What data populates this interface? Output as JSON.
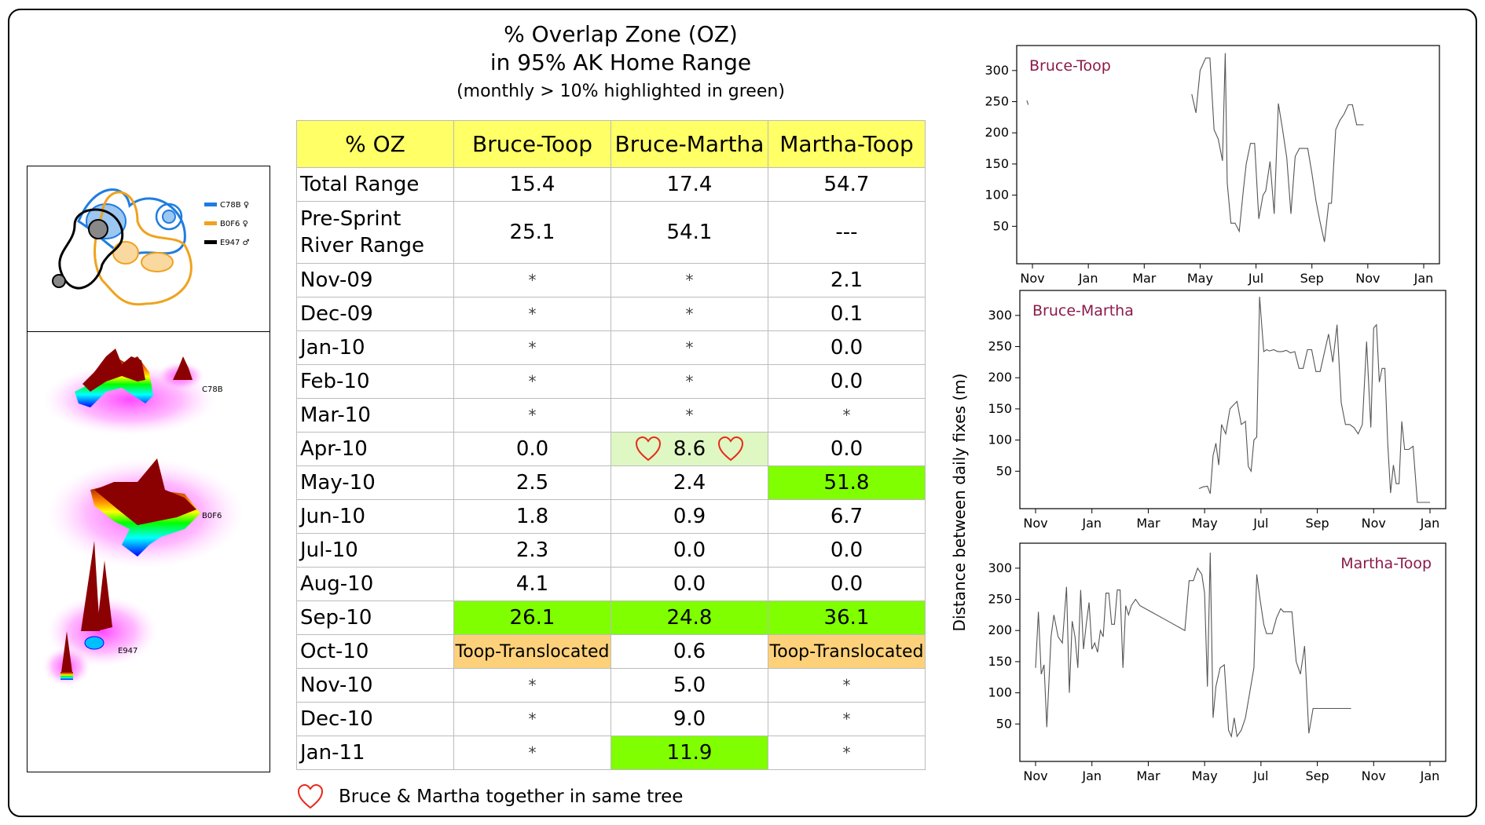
{
  "title": {
    "line1": "% Overlap Zone (OZ)",
    "line2": "in 95% AK Home Range",
    "subtitle": "(monthly > 10% highlighted in green)"
  },
  "table": {
    "headers": [
      "% OZ",
      "Bruce-Toop",
      "Bruce-Martha",
      "Martha-Toop"
    ],
    "rows": [
      {
        "label": "Total Range",
        "values": [
          "15.4",
          "17.4",
          "54.7"
        ],
        "hl": [
          "",
          "",
          ""
        ]
      },
      {
        "label": "Pre-Sprint River Range",
        "values": [
          "25.1",
          "54.1",
          "---"
        ],
        "hl": [
          "",
          "",
          ""
        ]
      },
      {
        "label": "Nov-09",
        "values": [
          "*",
          "*",
          "2.1"
        ],
        "hl": [
          "",
          "",
          ""
        ]
      },
      {
        "label": "Dec-09",
        "values": [
          "*",
          "*",
          "0.1"
        ],
        "hl": [
          "",
          "",
          ""
        ]
      },
      {
        "label": "Jan-10",
        "values": [
          "*",
          "*",
          "0.0"
        ],
        "hl": [
          "",
          "",
          ""
        ]
      },
      {
        "label": "Feb-10",
        "values": [
          "*",
          "*",
          "0.0"
        ],
        "hl": [
          "",
          "",
          ""
        ]
      },
      {
        "label": "Mar-10",
        "values": [
          "*",
          "*",
          "*"
        ],
        "hl": [
          "",
          "",
          ""
        ]
      },
      {
        "label": "Apr-10",
        "values": [
          "0.0",
          "8.6",
          "0.0"
        ],
        "hl": [
          "",
          "heart",
          ""
        ]
      },
      {
        "label": "May-10",
        "values": [
          "2.5",
          "2.4",
          "51.8"
        ],
        "hl": [
          "",
          "",
          "green"
        ]
      },
      {
        "label": "Jun-10",
        "values": [
          "1.8",
          "0.9",
          "6.7"
        ],
        "hl": [
          "",
          "",
          ""
        ]
      },
      {
        "label": "Jul-10",
        "values": [
          "2.3",
          "0.0",
          "0.0"
        ],
        "hl": [
          "",
          "",
          ""
        ]
      },
      {
        "label": "Aug-10",
        "values": [
          "4.1",
          "0.0",
          "0.0"
        ],
        "hl": [
          "",
          "",
          ""
        ]
      },
      {
        "label": "Sep-10",
        "values": [
          "26.1",
          "24.8",
          "36.1"
        ],
        "hl": [
          "green",
          "green",
          "green"
        ]
      },
      {
        "label": "Oct-10",
        "values": [
          "Toop-Translocated",
          "0.6",
          "Toop-Translocated"
        ],
        "hl": [
          "orange",
          "",
          "orange"
        ]
      },
      {
        "label": "Nov-10",
        "values": [
          "*",
          "5.0",
          "*"
        ],
        "hl": [
          "",
          "",
          ""
        ]
      },
      {
        "label": "Dec-10",
        "values": [
          "*",
          "9.0",
          "*"
        ],
        "hl": [
          "",
          "",
          ""
        ]
      },
      {
        "label": "Jan-11",
        "values": [
          "*",
          "11.9",
          "*"
        ],
        "hl": [
          "",
          "green",
          ""
        ]
      }
    ],
    "note": "Bruce & Martha together in same tree"
  },
  "colors": {
    "header_bg": "#ffff66",
    "green": "#80ff00",
    "light_green": "#dff7c2",
    "orange": "#fdd17a",
    "heart": "#e8291c",
    "chart_title": "#8b1a4a",
    "female_blue": "#1f7de0",
    "female_orange": "#f0a21e",
    "male_black": "#000000"
  },
  "map": {
    "legend": [
      {
        "id": "C78B",
        "sex": "♀",
        "color": "#1f7de0"
      },
      {
        "id": "B0F6",
        "sex": "♀",
        "color": "#f0a21e"
      },
      {
        "id": "E947",
        "sex": "♂",
        "color": "#000000"
      }
    ],
    "surface_labels": [
      "C78B",
      "B0F6",
      "E947"
    ]
  },
  "chart_data": [
    {
      "type": "line",
      "title": "Bruce-Toop",
      "ylabel": "Distance between daily fixes (m)",
      "xticks": [
        "Nov",
        "Jan",
        "Mar",
        "May",
        "Jul",
        "Sep",
        "Nov",
        "Jan"
      ],
      "yticks": [
        50,
        100,
        150,
        200,
        250,
        300
      ],
      "ylim": [
        0,
        330
      ],
      "xlim": [
        0,
        14
      ],
      "series": [
        {
          "name": "segment-1",
          "x": [
            -0.2,
            -0.15
          ],
          "y": [
            252,
            245
          ]
        },
        {
          "name": "segment-2",
          "x": [
            5.7,
            5.85,
            6.0,
            6.2,
            6.35,
            6.5,
            6.65,
            6.8,
            6.9,
            6.97,
            7.1,
            7.25,
            7.4,
            7.55,
            7.65,
            7.8,
            7.95,
            8.1,
            8.25,
            8.35,
            8.5,
            8.65,
            8.8,
            8.95,
            9.1,
            9.25,
            9.4,
            9.55,
            9.7,
            9.85,
            10.0,
            10.15,
            10.3,
            10.45,
            10.6,
            10.7,
            10.85,
            11.0,
            11.15,
            11.3,
            11.45,
            11.6,
            11.72,
            11.85
          ],
          "y": [
            262,
            232,
            300,
            320,
            320,
            205,
            190,
            155,
            328,
            120,
            55,
            55,
            42,
            110,
            150,
            183,
            183,
            62,
            100,
            107,
            154,
            70,
            247,
            205,
            160,
            70,
            162,
            175,
            175,
            175,
            135,
            90,
            55,
            25,
            87,
            87,
            205,
            220,
            230,
            245,
            245,
            213,
            213,
            213
          ]
        }
      ]
    },
    {
      "type": "line",
      "title": "Bruce-Martha",
      "ylabel": "Distance between daily fixes (m)",
      "xticks": [
        "Nov",
        "Jan",
        "Mar",
        "May",
        "Jul",
        "Sep",
        "Nov",
        "Jan"
      ],
      "yticks": [
        50,
        100,
        150,
        200,
        250,
        300
      ],
      "ylim": [
        0,
        330
      ],
      "xlim": [
        0,
        14
      ],
      "series": [
        {
          "name": "bruce-martha",
          "x": [
            5.8,
            5.95,
            6.1,
            6.2,
            6.3,
            6.4,
            6.5,
            6.6,
            6.75,
            6.9,
            7.0,
            7.15,
            7.3,
            7.45,
            7.55,
            7.65,
            7.75,
            7.85,
            7.95,
            8.1,
            8.2,
            8.3,
            8.45,
            8.6,
            8.75,
            8.9,
            9.05,
            9.2,
            9.35,
            9.5,
            9.65,
            9.8,
            9.95,
            10.1,
            10.25,
            10.4,
            10.55,
            10.7,
            10.85,
            11.0,
            11.15,
            11.3,
            11.45,
            11.6,
            11.75,
            11.9,
            12.0,
            12.1,
            12.2,
            12.3,
            12.4,
            12.5,
            12.6,
            12.7,
            12.8,
            12.9,
            13.0,
            13.1,
            13.25,
            13.4,
            13.55,
            13.7,
            13.85,
            14.0
          ],
          "y": [
            22,
            25,
            26,
            14,
            75,
            95,
            60,
            125,
            110,
            150,
            155,
            162,
            125,
            130,
            58,
            50,
            100,
            105,
            330,
            242,
            245,
            243,
            245,
            242,
            242,
            244,
            240,
            242,
            215,
            215,
            245,
            245,
            210,
            210,
            240,
            270,
            225,
            285,
            160,
            125,
            125,
            120,
            110,
            125,
            258,
            120,
            280,
            285,
            193,
            215,
            215,
            95,
            15,
            60,
            30,
            30,
            130,
            85,
            85,
            90,
            0,
            0,
            0,
            0
          ]
        }
      ]
    },
    {
      "type": "line",
      "title": "Martha-Toop",
      "ylabel": "Distance between daily fixes (m)",
      "xticks": [
        "Nov",
        "Jan",
        "Mar",
        "May",
        "Jul",
        "Sep",
        "Nov",
        "Jan"
      ],
      "yticks": [
        50,
        100,
        150,
        200,
        250,
        300
      ],
      "ylim": [
        0,
        330
      ],
      "xlim": [
        0,
        14
      ],
      "series": [
        {
          "name": "martha-toop",
          "x": [
            0.0,
            0.1,
            0.2,
            0.3,
            0.4,
            0.55,
            0.65,
            0.8,
            0.95,
            1.1,
            1.2,
            1.3,
            1.4,
            1.5,
            1.6,
            1.7,
            1.8,
            1.9,
            2.0,
            2.1,
            2.2,
            2.3,
            2.4,
            2.5,
            2.6,
            2.7,
            2.8,
            2.9,
            3.0,
            3.1,
            3.2,
            3.3,
            3.4,
            3.55,
            3.7,
            4.1,
            4.5,
            4.9,
            5.3,
            5.45,
            5.6,
            5.75,
            5.9,
            6.0,
            6.1,
            6.2,
            6.3,
            6.4,
            6.55,
            6.7,
            6.85,
            6.95,
            7.05,
            7.15,
            7.3,
            7.45,
            7.6,
            7.75,
            7.85,
            7.95,
            8.1,
            8.2,
            8.3,
            8.4,
            8.55,
            8.7,
            8.8,
            8.95,
            9.1,
            9.25,
            9.4,
            9.55,
            9.7,
            9.85,
            10.0,
            10.15,
            10.3,
            10.45,
            10.6,
            10.75,
            10.9,
            11.0,
            11.1,
            11.2
          ],
          "y": [
            140,
            230,
            130,
            145,
            45,
            190,
            225,
            190,
            180,
            270,
            100,
            215,
            190,
            140,
            265,
            170,
            210,
            245,
            170,
            180,
            165,
            200,
            190,
            260,
            260,
            210,
            210,
            265,
            265,
            140,
            240,
            225,
            240,
            250,
            240,
            230,
            220,
            210,
            200,
            280,
            280,
            300,
            290,
            260,
            110,
            325,
            60,
            110,
            140,
            145,
            40,
            30,
            60,
            30,
            40,
            60,
            100,
            140,
            290,
            255,
            210,
            195,
            195,
            195,
            220,
            235,
            230,
            230,
            230,
            150,
            130,
            175,
            35,
            75,
            75,
            75,
            75,
            75,
            75,
            75,
            75,
            75,
            75,
            75
          ]
        }
      ]
    }
  ]
}
